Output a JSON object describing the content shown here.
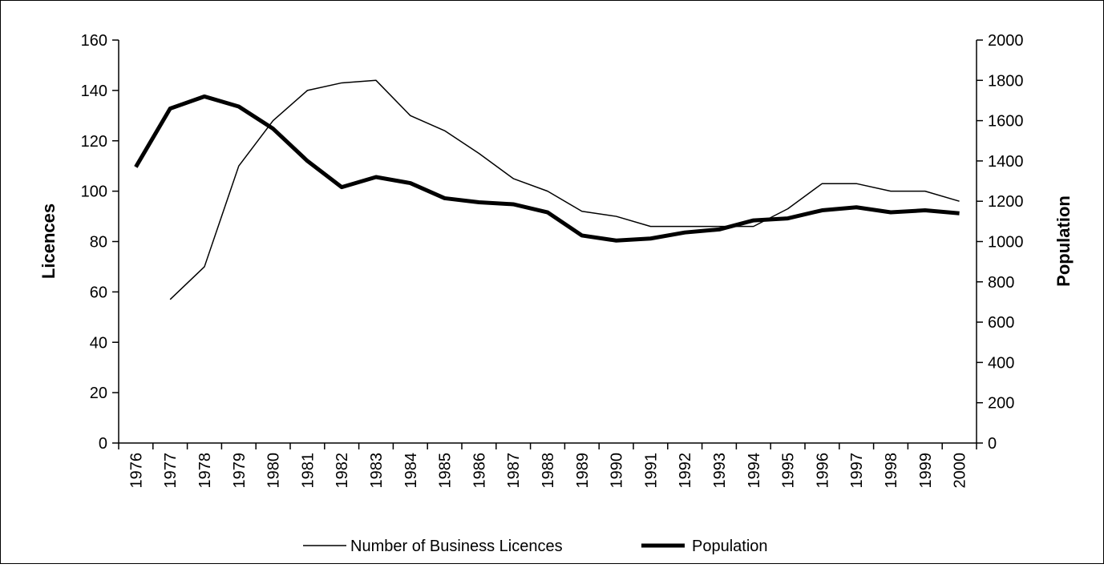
{
  "chart_data": {
    "type": "line",
    "categories": [
      "1976",
      "1977",
      "1978",
      "1979",
      "1980",
      "1981",
      "1982",
      "1983",
      "1984",
      "1985",
      "1986",
      "1987",
      "1988",
      "1989",
      "1990",
      "1991",
      "1992",
      "1993",
      "1994",
      "1995",
      "1996",
      "1997",
      "1998",
      "1999",
      "2000"
    ],
    "y_label": "Licences",
    "y2_label": "Population",
    "ylim": [
      0,
      160
    ],
    "yticks": [
      0,
      20,
      40,
      60,
      80,
      100,
      120,
      140,
      160
    ],
    "y2lim": [
      0,
      2000
    ],
    "y2ticks": [
      0,
      200,
      400,
      600,
      800,
      1000,
      1200,
      1400,
      1600,
      1800,
      2000
    ],
    "legend": "bottom",
    "series": [
      {
        "name": "Number of Business Licences",
        "color": "#000000",
        "width": 1.5,
        "values": [
          null,
          57,
          70,
          110,
          128,
          140,
          143,
          144,
          130,
          124,
          115,
          105,
          100,
          92,
          90,
          86,
          86,
          86,
          86,
          93,
          103,
          103,
          100,
          100,
          96
        ]
      },
      {
        "name": "Population",
        "color": "#000000",
        "width": 5,
        "axis": "y2",
        "values": [
          1370,
          1660,
          1720,
          1670,
          1560,
          1400,
          1270,
          1320,
          1290,
          1215,
          1195,
          1185,
          1145,
          1030,
          1005,
          1015,
          1045,
          1060,
          1105,
          1115,
          1155,
          1170,
          1145,
          1155,
          1140
        ]
      }
    ]
  }
}
